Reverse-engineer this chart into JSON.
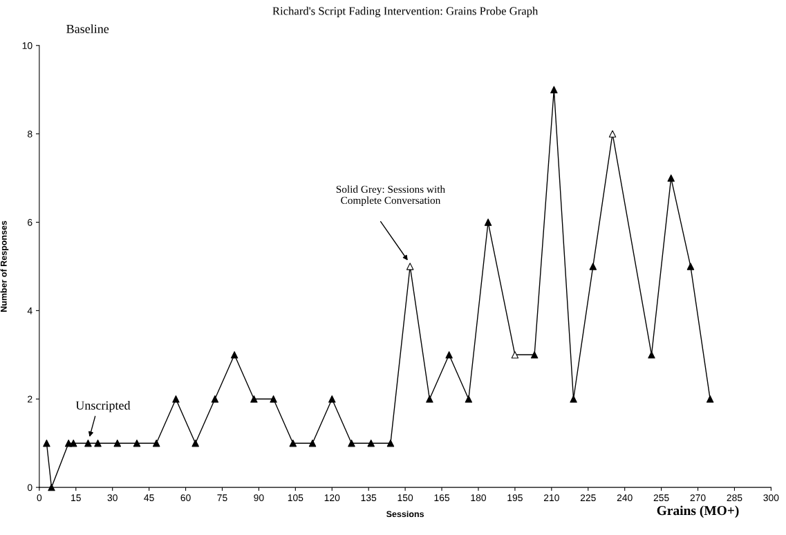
{
  "chart_data": {
    "type": "line",
    "title": "Richard's Script Fading Intervention: Grains Probe Graph",
    "xlabel": "Sessions",
    "ylabel": "Number of Responses",
    "x": [
      3,
      5,
      12,
      14,
      20,
      24,
      32,
      40,
      48,
      56,
      64,
      72,
      80,
      88,
      96,
      104,
      112,
      120,
      128,
      136,
      144,
      152,
      160,
      168,
      176,
      184,
      195,
      203,
      211,
      219,
      227,
      235,
      251,
      259,
      267,
      275
    ],
    "series": [
      {
        "color": "#000000",
        "values": [
          1,
          0,
          1,
          1,
          1,
          1,
          1,
          1,
          1,
          2,
          1,
          2,
          3,
          2,
          2,
          1,
          1,
          2,
          1,
          1,
          1,
          5,
          2,
          3,
          2,
          6,
          3,
          3,
          9,
          2,
          5,
          8,
          3,
          7,
          5,
          2
        ],
        "colors": [
          "#000000",
          "#000000",
          "#000000",
          "#000000",
          "#000000",
          "#000000",
          "#000000",
          "#000000",
          "#000000",
          "#000000",
          "#000000",
          "#000000",
          "#000000",
          "#000000",
          "#000000",
          "#000000",
          "#000000",
          "#000000",
          "#000000",
          "#000000",
          "#000000",
          "#ffffff",
          "#000000",
          "#000000",
          "#000000",
          "#000000",
          "#ffffff",
          "#000000",
          "#000000",
          "#000000",
          "#000000",
          "#ffffff",
          "#000000",
          "#000000",
          "#000000",
          "#000000"
        ]
      }
    ],
    "xlim": [
      0,
      300
    ],
    "xticks": [
      0,
      15,
      30,
      45,
      60,
      75,
      90,
      105,
      120,
      135,
      150,
      165,
      180,
      195,
      210,
      225,
      240,
      255,
      270,
      285,
      300
    ],
    "ylim": [
      0,
      10
    ],
    "yticks": [
      0,
      2,
      4,
      6,
      8,
      10
    ],
    "marker": "triangle",
    "line_style": "solid",
    "grid": false,
    "legend": false,
    "annotations": [
      "Baseline",
      "Unscripted",
      "Solid Grey: Sessions with\nComplete Conversation",
      "Grains (MO+)"
    ]
  }
}
